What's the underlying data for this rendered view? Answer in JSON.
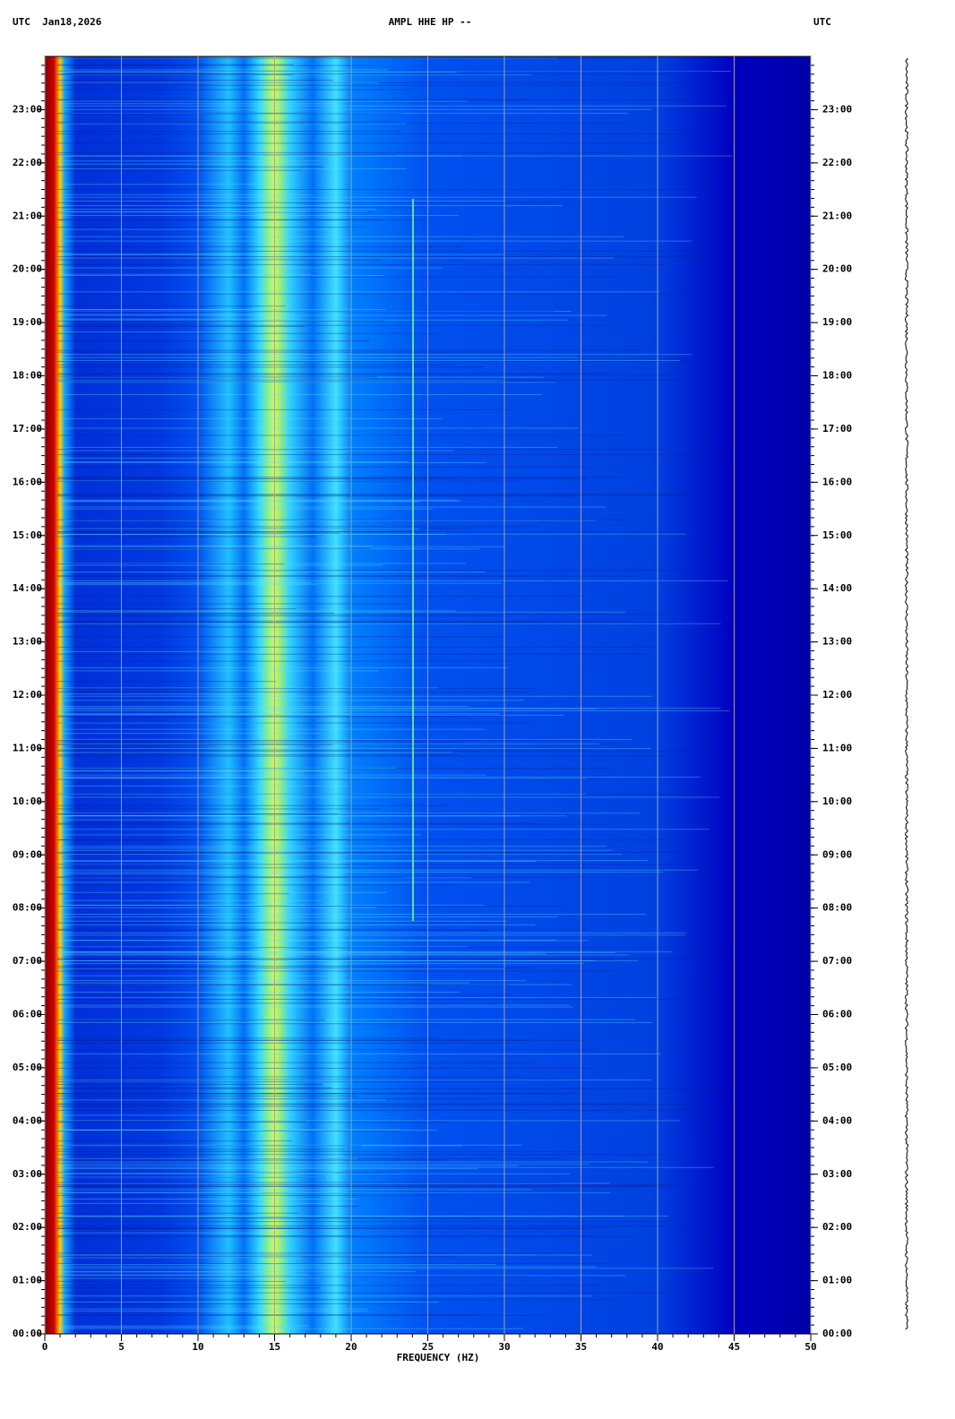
{
  "chart_data": {
    "type": "spectrogram",
    "title": "AMPL HHE HP --",
    "left_header": "UTC  Jan18,2026",
    "right_header": "UTC",
    "xlabel": "FREQUENCY (HZ)",
    "xlim": [
      0,
      50
    ],
    "xticks": [
      0,
      5,
      10,
      15,
      20,
      25,
      30,
      35,
      40,
      45,
      50
    ],
    "ylim": [
      0,
      24
    ],
    "yticks": [
      {
        "value": 0,
        "label": "00:00"
      },
      {
        "value": 1,
        "label": "01:00"
      },
      {
        "value": 2,
        "label": "02:00"
      },
      {
        "value": 3,
        "label": "03:00"
      },
      {
        "value": 4,
        "label": "04:00"
      },
      {
        "value": 5,
        "label": "05:00"
      },
      {
        "value": 6,
        "label": "06:00"
      },
      {
        "value": 7,
        "label": "07:00"
      },
      {
        "value": 8,
        "label": "08:00"
      },
      {
        "value": 9,
        "label": "09:00"
      },
      {
        "value": 10,
        "label": "10:00"
      },
      {
        "value": 11,
        "label": "11:00"
      },
      {
        "value": 12,
        "label": "12:00"
      },
      {
        "value": 13,
        "label": "13:00"
      },
      {
        "value": 14,
        "label": "14:00"
      },
      {
        "value": 15,
        "label": "15:00"
      },
      {
        "value": 16,
        "label": "16:00"
      },
      {
        "value": 17,
        "label": "17:00"
      },
      {
        "value": 18,
        "label": "18:00"
      },
      {
        "value": 19,
        "label": "19:00"
      },
      {
        "value": 20,
        "label": "20:00"
      },
      {
        "value": 21,
        "label": "21:00"
      },
      {
        "value": 22,
        "label": "22:00"
      },
      {
        "value": 23,
        "label": "23:00"
      }
    ],
    "grid": true
  }
}
